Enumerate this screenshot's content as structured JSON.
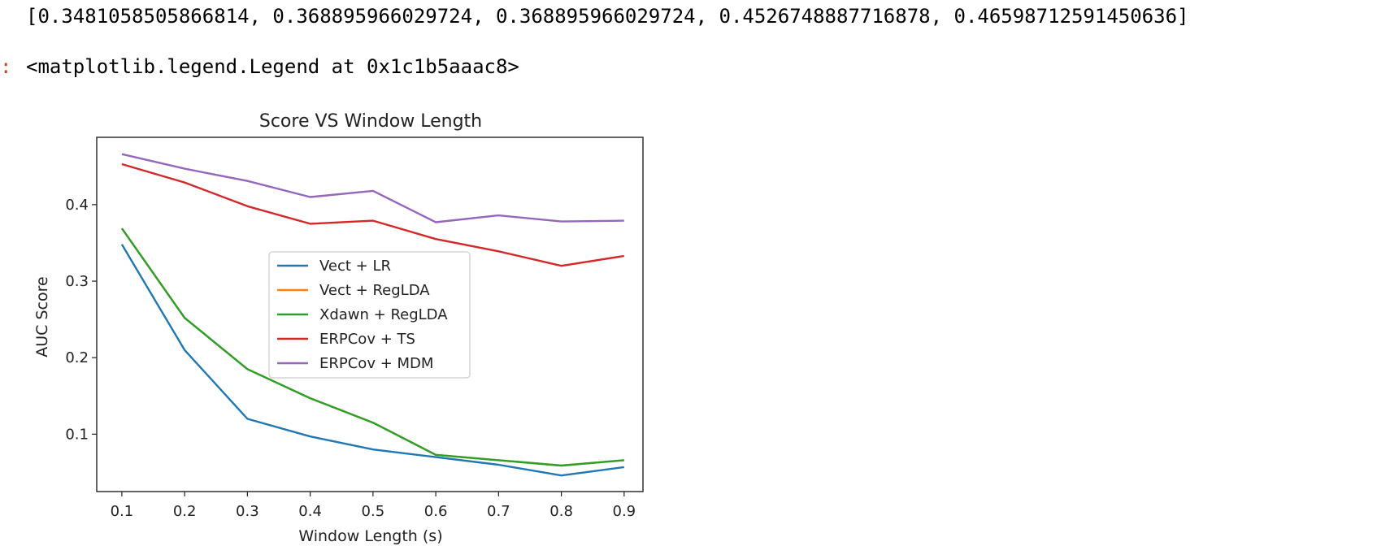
{
  "output": {
    "array_text": "[0.3481058505866814, 0.368895966029724, 0.368895966029724, 0.4526748887716878, 0.46598712591450636]",
    "prompt_mark": ":",
    "repr_text": "<matplotlib.legend.Legend at 0x1c1b5aaac8>"
  },
  "chart_data": {
    "type": "line",
    "title": "Score VS Window Length",
    "xlabel": "Window Length (s)",
    "ylabel": "AUC Score",
    "x": [
      0.1,
      0.2,
      0.3,
      0.4,
      0.5,
      0.6,
      0.7,
      0.8,
      0.9
    ],
    "xticks": [
      "0.1",
      "0.2",
      "0.3",
      "0.4",
      "0.5",
      "0.6",
      "0.7",
      "0.8",
      "0.9"
    ],
    "yticks": [
      "0.1",
      "0.2",
      "0.3",
      "0.4"
    ],
    "ytick_values": [
      0.1,
      0.2,
      0.3,
      0.4
    ],
    "xlim": [
      0.06,
      0.93
    ],
    "ylim": [
      0.025,
      0.488
    ],
    "grid": false,
    "legend_position": "center",
    "series": [
      {
        "name": "Vect + LR",
        "color": "#1f77b4",
        "values": [
          0.348,
          0.21,
          0.12,
          0.097,
          0.08,
          0.07,
          0.06,
          0.046,
          0.057
        ]
      },
      {
        "name": "Vect + RegLDA",
        "color": "#ff7f0e",
        "values": [
          0.369,
          0.252,
          0.185,
          0.147,
          0.115,
          0.073,
          0.066,
          0.059,
          0.066
        ]
      },
      {
        "name": "Xdawn + RegLDA",
        "color": "#2ca02c",
        "values": [
          0.369,
          0.252,
          0.185,
          0.147,
          0.115,
          0.073,
          0.066,
          0.059,
          0.066
        ]
      },
      {
        "name": "ERPCov + TS",
        "color": "#d62728",
        "values": [
          0.453,
          0.429,
          0.398,
          0.375,
          0.379,
          0.355,
          0.339,
          0.32,
          0.333
        ]
      },
      {
        "name": "ERPCov + MDM",
        "color": "#9467bd",
        "values": [
          0.466,
          0.447,
          0.431,
          0.41,
          0.418,
          0.377,
          0.386,
          0.378,
          0.379
        ]
      }
    ]
  }
}
